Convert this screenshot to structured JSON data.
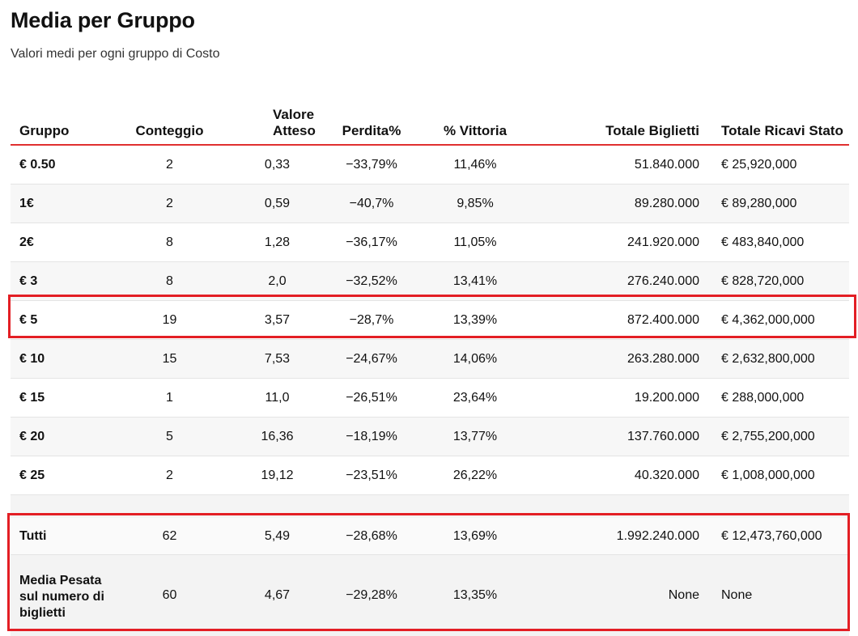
{
  "title": "Media per Gruppo",
  "subtitle": "Valori medi per ogni gruppo di Costo",
  "headers": {
    "gruppo": "Gruppo",
    "conteggio": "Conteggio",
    "valore_atteso": "Valore Atteso",
    "perdita": "Perdita%",
    "vittoria": "% Vittoria",
    "totale_biglietti": "Totale Biglietti",
    "totale_ricavi": "Totale Ricavi Stato"
  },
  "rows": [
    {
      "gruppo": "€ 0.50",
      "conteggio": "2",
      "valore_atteso": "0,33",
      "perdita": "−33,79%",
      "vittoria": "11,46%",
      "totale_biglietti": "51.840.000",
      "totale_ricavi": "€ 25,920,000"
    },
    {
      "gruppo": "1€",
      "conteggio": "2",
      "valore_atteso": "0,59",
      "perdita": "−40,7%",
      "vittoria": "9,85%",
      "totale_biglietti": "89.280.000",
      "totale_ricavi": "€ 89,280,000"
    },
    {
      "gruppo": "2€",
      "conteggio": "8",
      "valore_atteso": "1,28",
      "perdita": "−36,17%",
      "vittoria": "11,05%",
      "totale_biglietti": "241.920.000",
      "totale_ricavi": "€ 483,840,000"
    },
    {
      "gruppo": "€ 3",
      "conteggio": "8",
      "valore_atteso": "2,0",
      "perdita": "−32,52%",
      "vittoria": "13,41%",
      "totale_biglietti": "276.240.000",
      "totale_ricavi": "€ 828,720,000"
    },
    {
      "gruppo": "€ 5",
      "conteggio": "19",
      "valore_atteso": "3,57",
      "perdita": "−28,7%",
      "vittoria": "13,39%",
      "totale_biglietti": "872.400.000",
      "totale_ricavi": "€ 4,362,000,000"
    },
    {
      "gruppo": "€ 10",
      "conteggio": "15",
      "valore_atteso": "7,53",
      "perdita": "−24,67%",
      "vittoria": "14,06%",
      "totale_biglietti": "263.280.000",
      "totale_ricavi": "€ 2,632,800,000"
    },
    {
      "gruppo": "€ 15",
      "conteggio": "1",
      "valore_atteso": "11,0",
      "perdita": "−26,51%",
      "vittoria": "23,64%",
      "totale_biglietti": "19.200.000",
      "totale_ricavi": "€ 288,000,000"
    },
    {
      "gruppo": "€ 20",
      "conteggio": "5",
      "valore_atteso": "16,36",
      "perdita": "−18,19%",
      "vittoria": "13,77%",
      "totale_biglietti": "137.760.000",
      "totale_ricavi": "€ 2,755,200,000"
    },
    {
      "gruppo": "€ 25",
      "conteggio": "2",
      "valore_atteso": "19,12",
      "perdita": "−23,51%",
      "vittoria": "26,22%",
      "totale_biglietti": "40.320.000",
      "totale_ricavi": "€ 1,008,000,000"
    }
  ],
  "summary": [
    {
      "gruppo": "Tutti",
      "conteggio": "62",
      "valore_atteso": "5,49",
      "perdita": "−28,68%",
      "vittoria": "13,69%",
      "totale_biglietti": "1.992.240.000",
      "totale_ricavi": "€ 12,473,760,000"
    },
    {
      "gruppo": "Media Pesata sul numero di biglietti",
      "conteggio": "60",
      "valore_atteso": "4,67",
      "perdita": "−29,28%",
      "vittoria": "13,35%",
      "totale_biglietti": "None",
      "totale_ricavi": "None"
    }
  ],
  "highlight_color": "#e31e24"
}
